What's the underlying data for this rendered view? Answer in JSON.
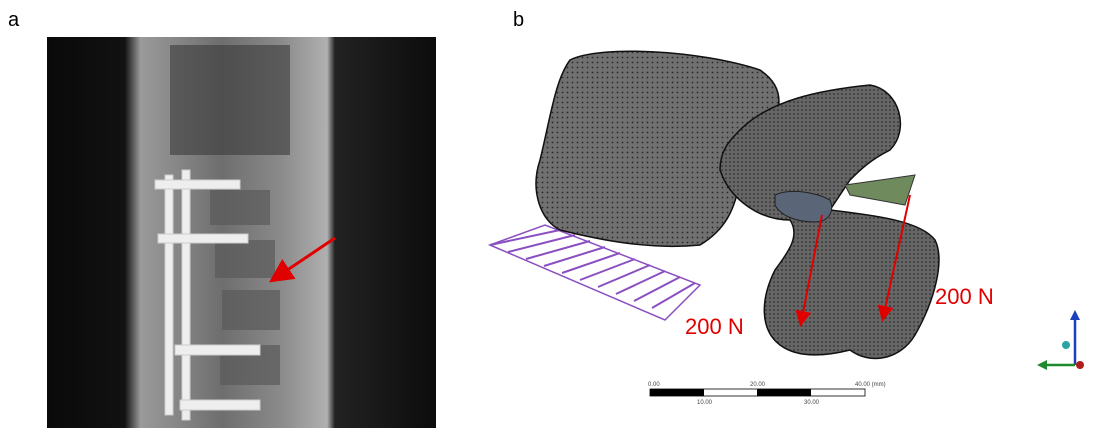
{
  "panels": [
    {
      "label": "a"
    },
    {
      "label": "b",
      "annotations": [
        "200 N",
        "200 N"
      ],
      "scale_bar": {
        "top_labels": [
          "0.00",
          "20.00",
          "40.00 (mm)"
        ],
        "bottom_labels": [
          "10.00",
          "30.00"
        ]
      }
    }
  ]
}
